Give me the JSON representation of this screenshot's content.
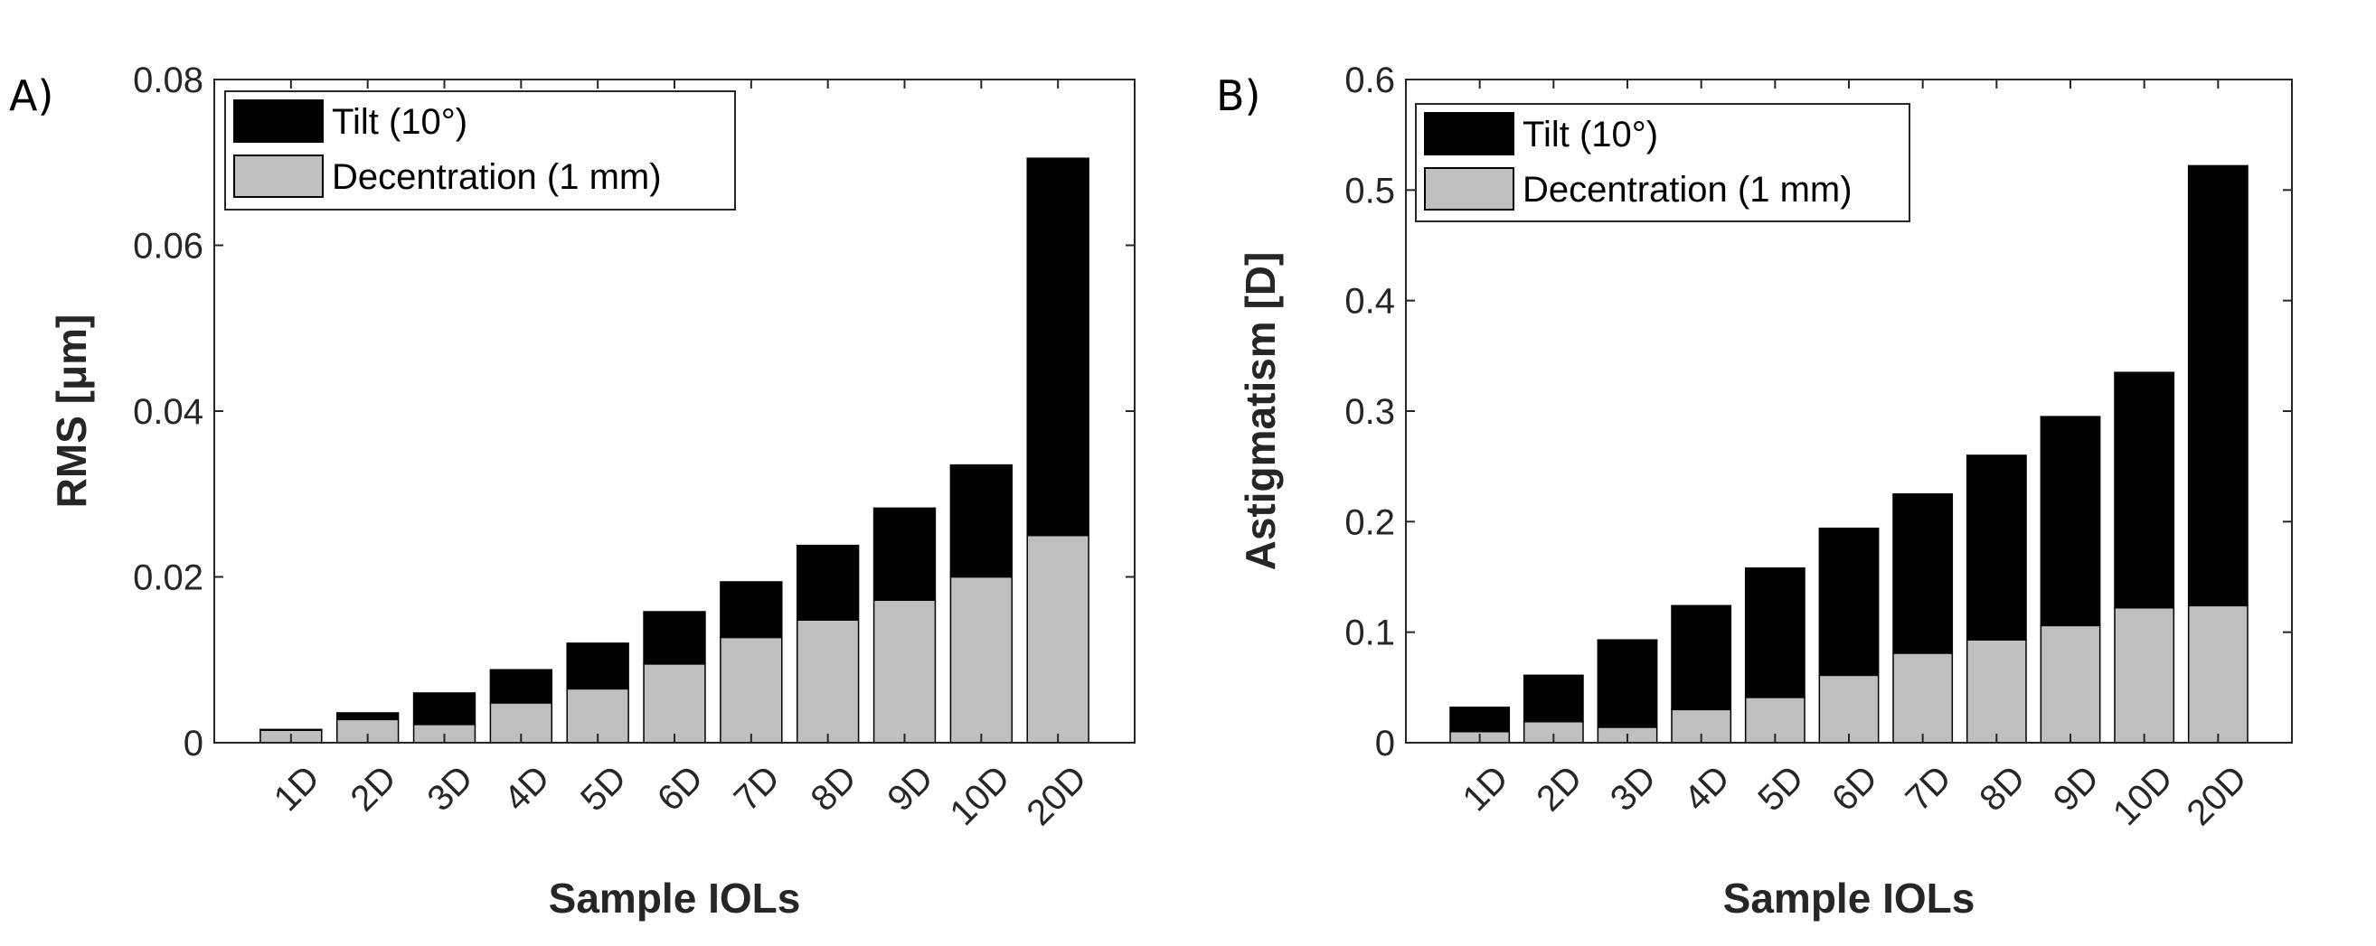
{
  "chart_data": [
    {
      "type": "bar",
      "stacked": true,
      "panel_label": "A)",
      "title": "",
      "xlabel": "Sample IOLs",
      "ylabel": "RMS [μm]",
      "ylim": [
        0,
        0.08
      ],
      "yticks": [
        0,
        0.02,
        0.04,
        0.06,
        0.08
      ],
      "ytick_labels": [
        "0",
        "0.02",
        "0.04",
        "0.06",
        "0.08"
      ],
      "categories": [
        "1D",
        "2D",
        "3D",
        "4D",
        "5D",
        "6D",
        "7D",
        "8D",
        "9D",
        "10D",
        "20D"
      ],
      "legend_position": "top-left",
      "series": [
        {
          "name": "Decentration (1 mm)",
          "color": "#bfbfbf",
          "values": [
            0.0015,
            0.0028,
            0.0022,
            0.0048,
            0.0065,
            0.0095,
            0.0127,
            0.0148,
            0.0172,
            0.02,
            0.025
          ]
        },
        {
          "name": "Tilt (10°)",
          "color": "#000000",
          "values": [
            0.0001,
            0.0008,
            0.0038,
            0.004,
            0.0055,
            0.0063,
            0.0067,
            0.009,
            0.0111,
            0.0135,
            0.0455
          ]
        }
      ]
    },
    {
      "type": "bar",
      "stacked": true,
      "panel_label": "B)",
      "title": "",
      "xlabel": "Sample IOLs",
      "ylabel": "Astigmatism [D]",
      "ylim": [
        0,
        0.6
      ],
      "yticks": [
        0,
        0.1,
        0.2,
        0.3,
        0.4,
        0.5,
        0.6
      ],
      "ytick_labels": [
        "0",
        "0.1",
        "0.2",
        "0.3",
        "0.4",
        "0.5",
        "0.6"
      ],
      "categories": [
        "1D",
        "2D",
        "3D",
        "4D",
        "5D",
        "6D",
        "7D",
        "8D",
        "9D",
        "10D",
        "20D"
      ],
      "legend_position": "top-left",
      "series": [
        {
          "name": "Decentration (1 mm)",
          "color": "#bfbfbf",
          "values": [
            0.01,
            0.019,
            0.014,
            0.03,
            0.041,
            0.061,
            0.081,
            0.093,
            0.106,
            0.122,
            0.124
          ]
        },
        {
          "name": "Tilt (10°)",
          "color": "#000000",
          "values": [
            0.022,
            0.042,
            0.079,
            0.094,
            0.117,
            0.133,
            0.144,
            0.167,
            0.189,
            0.213,
            0.398
          ]
        }
      ]
    }
  ]
}
